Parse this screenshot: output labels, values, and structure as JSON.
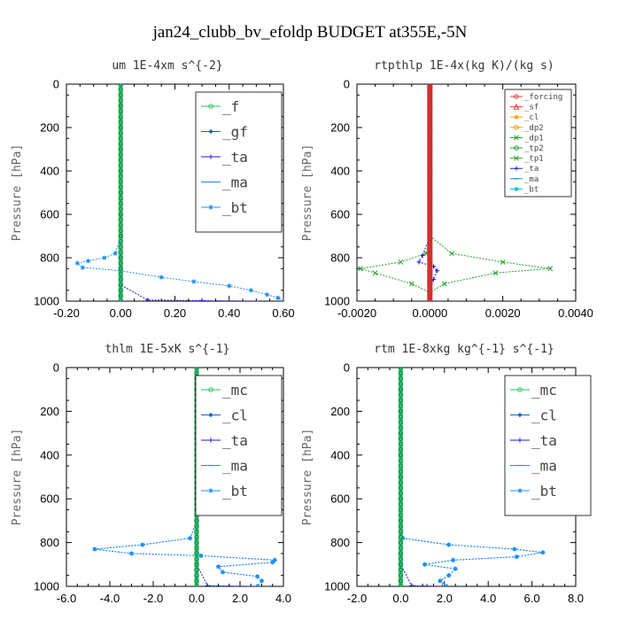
{
  "figure": {
    "title": "jan24_clubb_bv_efoldp  BUDGET at355E,-5N"
  },
  "chart_data": [
    {
      "type": "line",
      "title": "um  1E-4xm s^{-2}",
      "ylabel": "Pressure [hPa]",
      "xlim": [
        -0.2,
        0.6
      ],
      "ylim": [
        1000,
        0
      ],
      "xticks": [
        "-0.20",
        "0.00",
        "0.20",
        "0.40",
        "0.60"
      ],
      "yticks": [
        "0",
        "200",
        "400",
        "600",
        "800",
        "1000"
      ],
      "legend_position": "top-right",
      "legend_size": "large",
      "series": [
        {
          "name": "_f",
          "color": "#22c55e",
          "marker": "circle",
          "x": [
            0.0,
            0.0,
            0.0,
            0.0,
            0.0,
            0.0,
            0.0,
            0.0,
            0.0,
            0.0,
            0.0,
            0.0,
            0.0,
            0.0,
            0.0
          ],
          "y": [
            0,
            100,
            200,
            300,
            400,
            500,
            600,
            700,
            800,
            850,
            900,
            925,
            950,
            975,
            1000
          ]
        },
        {
          "name": "_gf",
          "color": "#1565c0",
          "marker": "diamond",
          "x": [
            0.0,
            0.0,
            0.0,
            0.0,
            0.0,
            0.0,
            0.0,
            0.0,
            0.0,
            0.0,
            0.0,
            0.0,
            0.0,
            0.0,
            0.0
          ],
          "y": [
            0,
            100,
            200,
            300,
            400,
            500,
            600,
            700,
            800,
            850,
            900,
            925,
            950,
            975,
            1000
          ]
        },
        {
          "name": "_ta",
          "color": "#1a1ad6",
          "marker": "plus",
          "x": [
            0.0,
            0.0,
            0.0,
            0.0,
            0.0,
            0.0,
            0.0,
            0.0,
            0.0,
            0.0,
            0.0,
            0.0,
            0.1,
            0.3,
            0.5
          ],
          "y": [
            0,
            100,
            200,
            300,
            400,
            500,
            600,
            700,
            800,
            850,
            900,
            925,
            995,
            998,
            1000
          ]
        },
        {
          "name": "_ma",
          "color": "#1e88e5",
          "marker": "dash",
          "x": [
            0.0,
            0.0,
            0.0,
            0.0,
            0.0,
            0.0,
            0.0,
            0.0,
            0.0,
            0.0,
            0.0,
            0.0,
            0.0,
            0.0,
            0.0
          ],
          "y": [
            0,
            100,
            200,
            300,
            400,
            500,
            600,
            700,
            800,
            850,
            900,
            925,
            950,
            975,
            1000
          ]
        },
        {
          "name": "_bt",
          "color": "#1e90ff",
          "marker": "star",
          "x": [
            0.0,
            0.0,
            0.0,
            0.0,
            0.0,
            0.0,
            0.0,
            0.0,
            -0.02,
            -0.06,
            -0.12,
            -0.16,
            -0.14,
            0.0,
            0.15,
            0.27,
            0.4,
            0.48,
            0.54,
            0.58,
            0.6
          ],
          "y": [
            0,
            100,
            200,
            300,
            400,
            500,
            600,
            700,
            780,
            800,
            815,
            825,
            845,
            860,
            890,
            910,
            930,
            950,
            970,
            985,
            1000
          ]
        }
      ]
    },
    {
      "type": "line",
      "title": "rtpthlp  1E-4x(kg K)/(kg s)",
      "ylabel": "Pressure [hPa]",
      "xlim": [
        -0.002,
        0.004
      ],
      "ylim": [
        1000,
        0
      ],
      "xticks": [
        "-0.0020",
        "0.0000",
        "0.0020",
        "0.0040"
      ],
      "yticks": [
        "0",
        "200",
        "400",
        "600",
        "800",
        "1000"
      ],
      "legend_position": "top-right",
      "legend_size": "small",
      "series": [
        {
          "name": "_forcing",
          "color": "#e53935",
          "marker": "circle",
          "x": [
            0,
            0,
            0,
            0,
            0,
            0,
            0,
            0,
            0,
            0,
            0,
            0
          ],
          "y": [
            0,
            100,
            200,
            300,
            400,
            500,
            600,
            700,
            800,
            850,
            900,
            1000
          ]
        },
        {
          "name": "_sf",
          "color": "#e53935",
          "marker": "triangle",
          "x": [
            0,
            0,
            0,
            0,
            0,
            0,
            0,
            0,
            0,
            0,
            0,
            0
          ],
          "y": [
            0,
            100,
            200,
            300,
            400,
            500,
            600,
            700,
            800,
            850,
            900,
            1000
          ]
        },
        {
          "name": "_cl",
          "color": "#f59e0b",
          "marker": "star",
          "x": [
            0,
            0,
            0,
            0,
            0,
            0,
            0,
            0,
            0,
            0,
            0,
            0
          ],
          "y": [
            0,
            100,
            200,
            300,
            400,
            500,
            600,
            700,
            800,
            850,
            900,
            1000
          ]
        },
        {
          "name": "_dp2",
          "color": "#f59e0b",
          "marker": "circle",
          "x": [
            0,
            0,
            0,
            0,
            0,
            0,
            0,
            0,
            0,
            0,
            0,
            0
          ],
          "y": [
            0,
            100,
            200,
            300,
            400,
            500,
            600,
            700,
            800,
            850,
            900,
            1000
          ]
        },
        {
          "name": "_dp1",
          "color": "#22a02e",
          "marker": "cross",
          "x": [
            0,
            0,
            0,
            0,
            -0.0001,
            -0.0008,
            -0.0019,
            -0.0015,
            -0.0005,
            0,
            0
          ],
          "y": [
            0,
            200,
            400,
            700,
            780,
            820,
            850,
            870,
            920,
            960,
            1000
          ]
        },
        {
          "name": "_tp2",
          "color": "#22a02e",
          "marker": "circle",
          "x": [
            0,
            0,
            0,
            0,
            0,
            0,
            0,
            0,
            0,
            0,
            0,
            0
          ],
          "y": [
            0,
            100,
            200,
            300,
            400,
            500,
            600,
            700,
            800,
            850,
            900,
            1000
          ]
        },
        {
          "name": "_tp1",
          "color": "#22a02e",
          "marker": "cross",
          "x": [
            0,
            0,
            0,
            0,
            0.0006,
            0.002,
            0.0033,
            0.0018,
            0.0004,
            0,
            0
          ],
          "y": [
            0,
            200,
            400,
            700,
            780,
            820,
            850,
            870,
            920,
            960,
            1000
          ]
        },
        {
          "name": "_ta",
          "color": "#1a1ad6",
          "marker": "plus",
          "x": [
            0,
            0,
            0,
            0,
            -0.0002,
            -0.0003,
            0.0001,
            0.0002,
            0.0001,
            0,
            0
          ],
          "y": [
            0,
            200,
            400,
            700,
            790,
            820,
            840,
            860,
            900,
            950,
            1000
          ]
        },
        {
          "name": "_ma",
          "color": "#1e88e5",
          "marker": "dash",
          "x": [
            0,
            0,
            0,
            0,
            0,
            0,
            0,
            0,
            0,
            0,
            0,
            0
          ],
          "y": [
            0,
            100,
            200,
            300,
            400,
            500,
            600,
            700,
            800,
            850,
            900,
            1000
          ]
        },
        {
          "name": "_bt",
          "color": "#00bcd4",
          "marker": "star",
          "x": [
            0,
            0,
            0,
            0,
            0,
            0,
            0,
            0,
            0,
            0,
            0,
            0
          ],
          "y": [
            0,
            100,
            200,
            300,
            400,
            500,
            600,
            700,
            800,
            850,
            900,
            1000
          ]
        }
      ]
    },
    {
      "type": "line",
      "title": "thlm  1E-5xK s^{-1}",
      "ylabel": "Pressure [hPa]",
      "xlim": [
        -6.0,
        4.0
      ],
      "ylim": [
        1000,
        0
      ],
      "xticks": [
        "-6.0",
        "-4.0",
        "-2.0",
        "0.0",
        "2.0",
        "4.0"
      ],
      "yticks": [
        "0",
        "200",
        "400",
        "600",
        "800",
        "1000"
      ],
      "legend_position": "top-right",
      "legend_size": "large",
      "series": [
        {
          "name": "_mc",
          "color": "#22c55e",
          "marker": "circle",
          "x": [
            0,
            0,
            0,
            0,
            0,
            0,
            0,
            0,
            0,
            0,
            0,
            0,
            0,
            0,
            0
          ],
          "y": [
            0,
            100,
            200,
            300,
            400,
            500,
            600,
            700,
            800,
            850,
            900,
            925,
            950,
            975,
            1000
          ]
        },
        {
          "name": "_cl",
          "color": "#1565c0",
          "marker": "diamond",
          "x": [
            0,
            0,
            0,
            0,
            0,
            0,
            0,
            0,
            -0.3,
            -2.5,
            -4.7,
            -3.0,
            0.2,
            3.6,
            3.5,
            1.0,
            1.2,
            2.8,
            3.0,
            2.8
          ],
          "y": [
            0,
            100,
            200,
            300,
            400,
            500,
            600,
            700,
            780,
            810,
            830,
            850,
            860,
            880,
            890,
            910,
            935,
            955,
            975,
            1000
          ]
        },
        {
          "name": "_ta",
          "color": "#1a1ad6",
          "marker": "plus",
          "x": [
            0,
            0,
            0,
            0,
            0,
            0,
            0,
            0,
            0,
            0,
            0.5,
            1.5,
            2.5
          ],
          "y": [
            0,
            100,
            200,
            300,
            400,
            500,
            600,
            700,
            800,
            900,
            997,
            999,
            1000
          ]
        },
        {
          "name": "_ma",
          "color": "#1e88e5",
          "marker": "dash",
          "x": [
            0,
            0,
            0,
            0,
            0,
            0,
            0,
            0,
            0,
            0,
            0,
            0
          ],
          "y": [
            0,
            100,
            200,
            300,
            400,
            500,
            600,
            700,
            800,
            850,
            900,
            1000
          ]
        },
        {
          "name": "_bt",
          "color": "#1e90ff",
          "marker": "star",
          "x": [
            0,
            0,
            0,
            0,
            0,
            0,
            0,
            0,
            -0.3,
            -2.5,
            -4.7,
            -3.0,
            0.2,
            3.6,
            3.5,
            1.0,
            1.2,
            2.8,
            3.0,
            2.8
          ],
          "y": [
            0,
            100,
            200,
            300,
            400,
            500,
            600,
            700,
            780,
            810,
            830,
            850,
            860,
            880,
            890,
            910,
            935,
            955,
            975,
            1000
          ]
        }
      ]
    },
    {
      "type": "line",
      "title": "rtm  1E-8xkg kg^{-1} s^{-1}",
      "ylabel": "Pressure [hPa]",
      "xlim": [
        -2.0,
        8.0
      ],
      "ylim": [
        1000,
        0
      ],
      "xticks": [
        "-2.0",
        "0.0",
        "2.0",
        "4.0",
        "6.0",
        "8.0"
      ],
      "yticks": [
        "0",
        "200",
        "400",
        "600",
        "800",
        "1000"
      ],
      "legend_position": "top-right",
      "legend_size": "large",
      "series": [
        {
          "name": "_mc",
          "color": "#22c55e",
          "marker": "circle",
          "x": [
            0,
            0,
            0,
            0,
            0,
            0,
            0,
            0,
            0,
            0,
            0,
            0,
            0,
            0,
            0
          ],
          "y": [
            0,
            100,
            200,
            300,
            400,
            500,
            600,
            700,
            800,
            850,
            900,
            925,
            950,
            975,
            1000
          ]
        },
        {
          "name": "_cl",
          "color": "#1565c0",
          "marker": "diamond",
          "x": [
            0,
            0,
            0,
            0,
            0,
            0,
            0,
            0,
            0.1,
            2.2,
            5.2,
            6.5,
            5.3,
            2.4,
            1.1,
            2.5,
            2.2,
            1.8,
            2.1
          ],
          "y": [
            0,
            100,
            200,
            300,
            400,
            500,
            600,
            700,
            780,
            810,
            830,
            845,
            865,
            880,
            900,
            920,
            950,
            975,
            1000
          ]
        },
        {
          "name": "_ta",
          "color": "#1a1ad6",
          "marker": "plus",
          "x": [
            0,
            0,
            0,
            0,
            0,
            0,
            0,
            0,
            0,
            0,
            0.5,
            1.2,
            1.9
          ],
          "y": [
            0,
            100,
            200,
            300,
            400,
            500,
            600,
            700,
            800,
            900,
            997,
            999,
            1000
          ]
        },
        {
          "name": "_ma",
          "color": "#1e88e5",
          "marker": "dash",
          "x": [
            0,
            0,
            0,
            0,
            0,
            0,
            0,
            0,
            0,
            0,
            0,
            0
          ],
          "y": [
            0,
            100,
            200,
            300,
            400,
            500,
            600,
            700,
            800,
            850,
            900,
            1000
          ]
        },
        {
          "name": "_bt",
          "color": "#1e90ff",
          "marker": "star",
          "x": [
            0,
            0,
            0,
            0,
            0,
            0,
            0,
            0,
            0.1,
            2.2,
            5.2,
            6.5,
            5.3,
            2.4,
            1.1,
            2.5,
            2.2,
            1.8,
            2.1
          ],
          "y": [
            0,
            100,
            200,
            300,
            400,
            500,
            600,
            700,
            780,
            810,
            830,
            845,
            865,
            880,
            900,
            920,
            950,
            975,
            1000
          ]
        }
      ]
    }
  ]
}
